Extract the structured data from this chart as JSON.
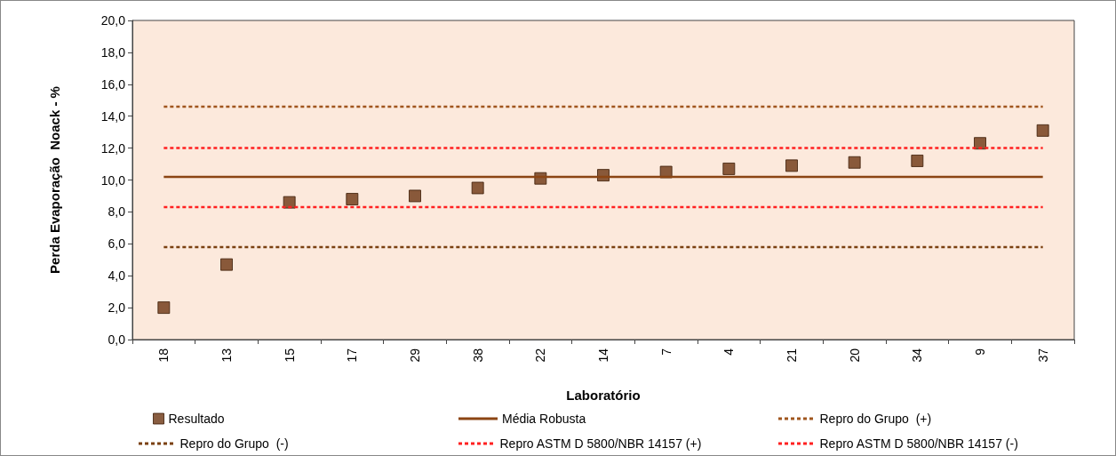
{
  "chart_data": {
    "type": "scatter",
    "xlabel": "Laboratório",
    "ylabel": "Perda Evaporação  Noack - %",
    "categories": [
      "18",
      "13",
      "15",
      "17",
      "29",
      "38",
      "22",
      "14",
      "7",
      "4",
      "21",
      "20",
      "34",
      "9",
      "37"
    ],
    "ylim": [
      0,
      20
    ],
    "yticks": [
      {
        "value": 0,
        "label": "0,0"
      },
      {
        "value": 2,
        "label": "2,0"
      },
      {
        "value": 4,
        "label": "4,0"
      },
      {
        "value": 6,
        "label": "6,0"
      },
      {
        "value": 8,
        "label": "8,0"
      },
      {
        "value": 10,
        "label": "10,0"
      },
      {
        "value": 12,
        "label": "12,0"
      },
      {
        "value": 14,
        "label": "14,0"
      },
      {
        "value": 16,
        "label": "16,0"
      },
      {
        "value": 18,
        "label": "18,0"
      },
      {
        "value": 20,
        "label": "20,0"
      }
    ],
    "grid": false,
    "legend": "bottom",
    "series": [
      {
        "name": "Resultado",
        "marker": "square",
        "color": "#6b3511",
        "values": [
          2.0,
          4.7,
          8.6,
          8.8,
          9.0,
          9.5,
          10.1,
          10.3,
          10.5,
          10.7,
          10.9,
          11.1,
          11.2,
          12.3,
          13.1
        ]
      },
      {
        "name": "Média Robusta",
        "type": "line",
        "color": "#8b4513",
        "line_style": "solid",
        "values": [
          10.2,
          10.2,
          10.2,
          10.2,
          10.2,
          10.2,
          10.2,
          10.2,
          10.2,
          10.2,
          10.2,
          10.2,
          10.2,
          10.2,
          10.2
        ]
      },
      {
        "name": "Repro do Grupo  (+)",
        "type": "line",
        "color": "#a0561e",
        "line_style": "dashed",
        "values": [
          14.6,
          14.6,
          14.6,
          14.6,
          14.6,
          14.6,
          14.6,
          14.6,
          14.6,
          14.6,
          14.6,
          14.6,
          14.6,
          14.6,
          14.6
        ]
      },
      {
        "name": "Repro do Grupo  (-)",
        "type": "line",
        "color": "#7a4010",
        "line_style": "dashed",
        "values": [
          5.8,
          5.8,
          5.8,
          5.8,
          5.8,
          5.8,
          5.8,
          5.8,
          5.8,
          5.8,
          5.8,
          5.8,
          5.8,
          5.8,
          5.8
        ]
      },
      {
        "name": "Repro ASTM D 5800/NBR 14157 (+)",
        "type": "line",
        "color": "#ff2020",
        "line_style": "dashed",
        "values": [
          12.0,
          12.0,
          12.0,
          12.0,
          12.0,
          12.0,
          12.0,
          12.0,
          12.0,
          12.0,
          12.0,
          12.0,
          12.0,
          12.0,
          12.0
        ]
      },
      {
        "name": "Repro ASTM D 5800/NBR 14157 (-)",
        "type": "line",
        "color": "#ff2020",
        "line_style": "dashed",
        "values": [
          8.3,
          8.3,
          8.3,
          8.3,
          8.3,
          8.3,
          8.3,
          8.3,
          8.3,
          8.3,
          8.3,
          8.3,
          8.3,
          8.3,
          8.3
        ]
      }
    ]
  }
}
